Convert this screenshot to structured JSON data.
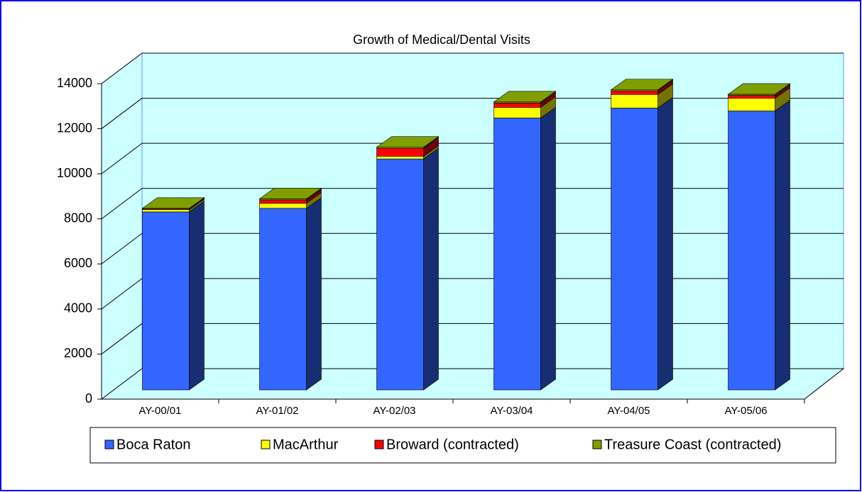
{
  "chart_data": {
    "type": "bar3d_stacked",
    "title": "Growth of Medical/Dental Visits",
    "categories": [
      "AY-00/01",
      "AY-01/02",
      "AY-02/03",
      "AY-03/04",
      "AY-04/05",
      "AY-05/06"
    ],
    "series": [
      {
        "name": "Boca Raton",
        "color": "#3366ff",
        "values": [
          7900,
          8060,
          10250,
          12070,
          12510,
          12380
        ]
      },
      {
        "name": "MacArthur",
        "color": "#ffff00",
        "values": [
          100,
          220,
          120,
          470,
          600,
          560
        ]
      },
      {
        "name": "Broward (contracted)",
        "color": "#ff0000",
        "values": [
          30,
          150,
          350,
          190,
          160,
          130
        ]
      },
      {
        "name": "Treasure Coast (contracted)",
        "color": "#7f9f00",
        "values": [
          30,
          50,
          50,
          50,
          50,
          50
        ]
      }
    ],
    "ylim": [
      0,
      14000
    ],
    "yticks": [
      0,
      2000,
      4000,
      6000,
      8000,
      10000,
      12000,
      14000
    ],
    "grid": true,
    "legend": "bottom"
  }
}
